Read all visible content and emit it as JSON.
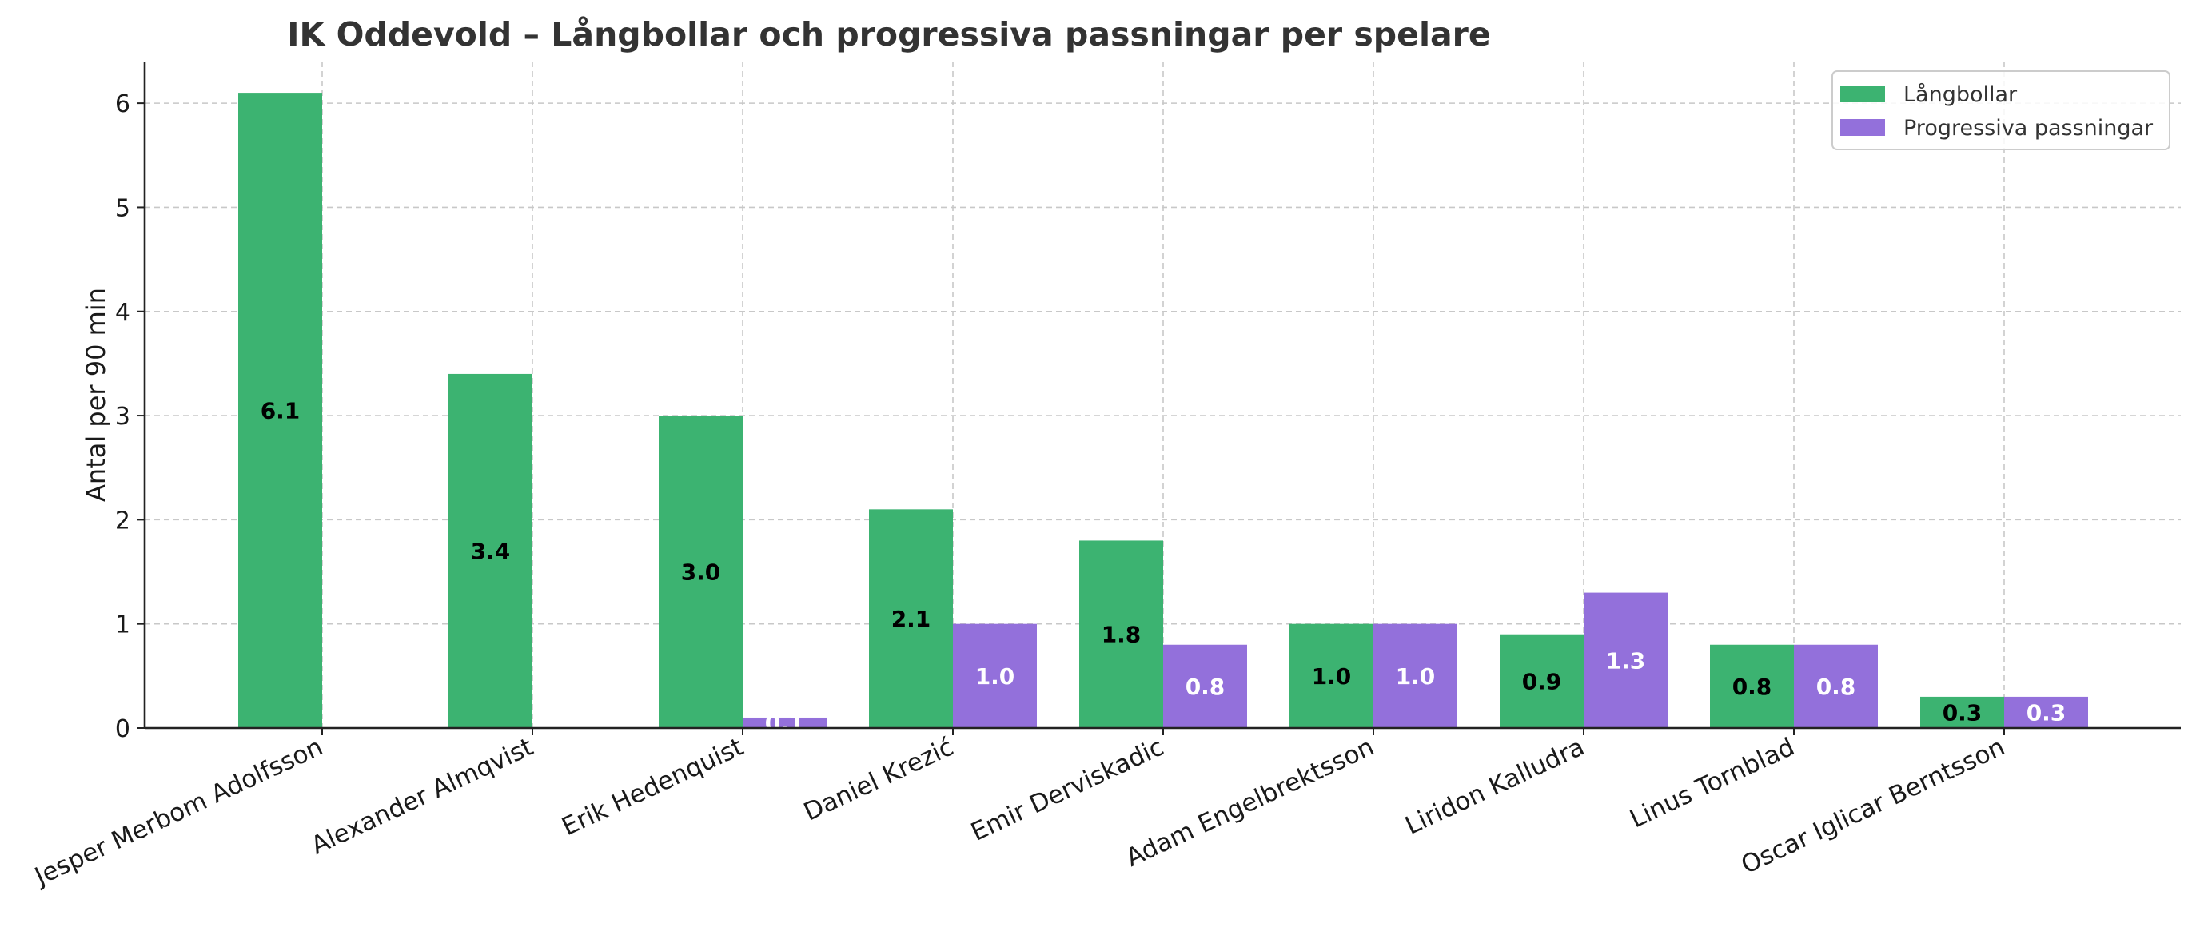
{
  "chart_data": {
    "type": "bar",
    "title": "IK Oddevold – Långbollar och progressiva passningar per spelare",
    "xlabel": "",
    "ylabel": "Antal per 90 min",
    "ylim": [
      0,
      6.4
    ],
    "yticks": [
      0,
      1,
      2,
      3,
      4,
      5,
      6
    ],
    "grid": true,
    "legend_position": "top-right",
    "categories": [
      "Jesper Merbom Adolfsson",
      "Alexander Almqvist",
      "Erik Hedenquist",
      "Daniel Krezić",
      "Emir Derviskadic",
      "Adam Engelbrektsson",
      "Liridon Kalludra",
      "Linus Tornblad",
      "Oscar Iglicar Berntsson"
    ],
    "series": [
      {
        "name": "Långbollar",
        "color": "#3cb371",
        "label_color": "#000000",
        "values": [
          6.1,
          3.4,
          3.0,
          2.1,
          1.8,
          1.0,
          0.9,
          0.8,
          0.3
        ],
        "labels": [
          "6.1",
          "3.4",
          "3.0",
          "2.1",
          "1.8",
          "1.0",
          "0.9",
          "0.8",
          "0.3"
        ]
      },
      {
        "name": "Progressiva passningar",
        "color": "#9370db",
        "label_color": "#ffffff",
        "values": [
          0.0,
          0.0,
          0.1,
          1.0,
          0.8,
          1.0,
          1.3,
          0.8,
          0.3
        ],
        "labels": [
          "",
          "",
          "0.1",
          "1.0",
          "0.8",
          "1.0",
          "1.3",
          "0.8",
          "0.3"
        ]
      }
    ]
  }
}
